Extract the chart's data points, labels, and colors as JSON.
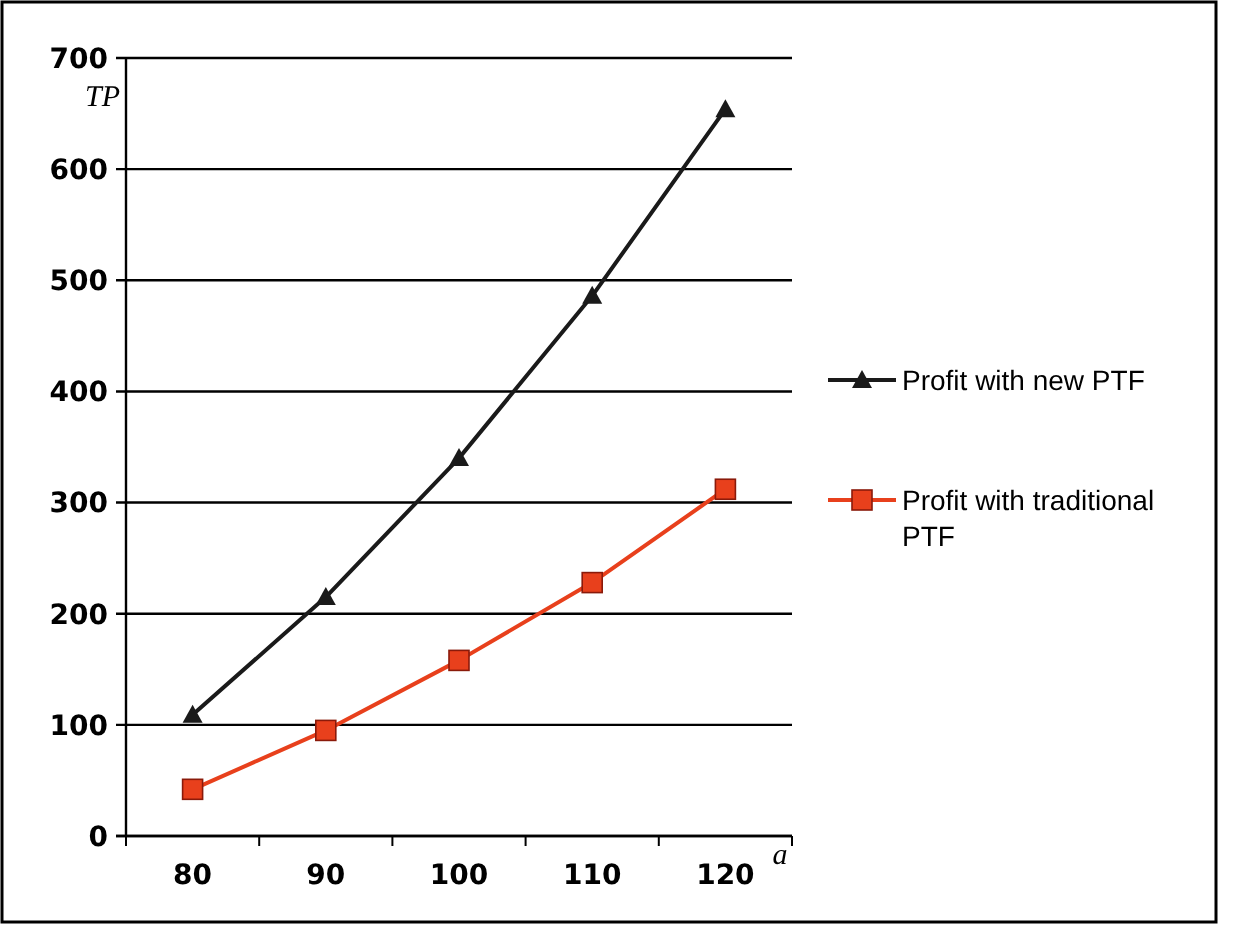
{
  "chart_data": {
    "type": "line",
    "xlabel": "a",
    "ylabel": "TP",
    "categories": [
      "80",
      "90",
      "100",
      "110",
      "120"
    ],
    "ylim": [
      0,
      700
    ],
    "yticks": [
      0,
      100,
      200,
      300,
      400,
      500,
      600,
      700
    ],
    "grid": "y",
    "legend": "right",
    "series": [
      {
        "name": "Profit with new PTF",
        "color": "#1a1a1a",
        "marker": "triangle",
        "values": [
          109,
          215,
          340,
          486,
          654
        ]
      },
      {
        "name": "Profit with traditional PTF",
        "color": "#e8401c",
        "marker": "square",
        "values": [
          42,
          95,
          158,
          228,
          312
        ]
      }
    ]
  }
}
